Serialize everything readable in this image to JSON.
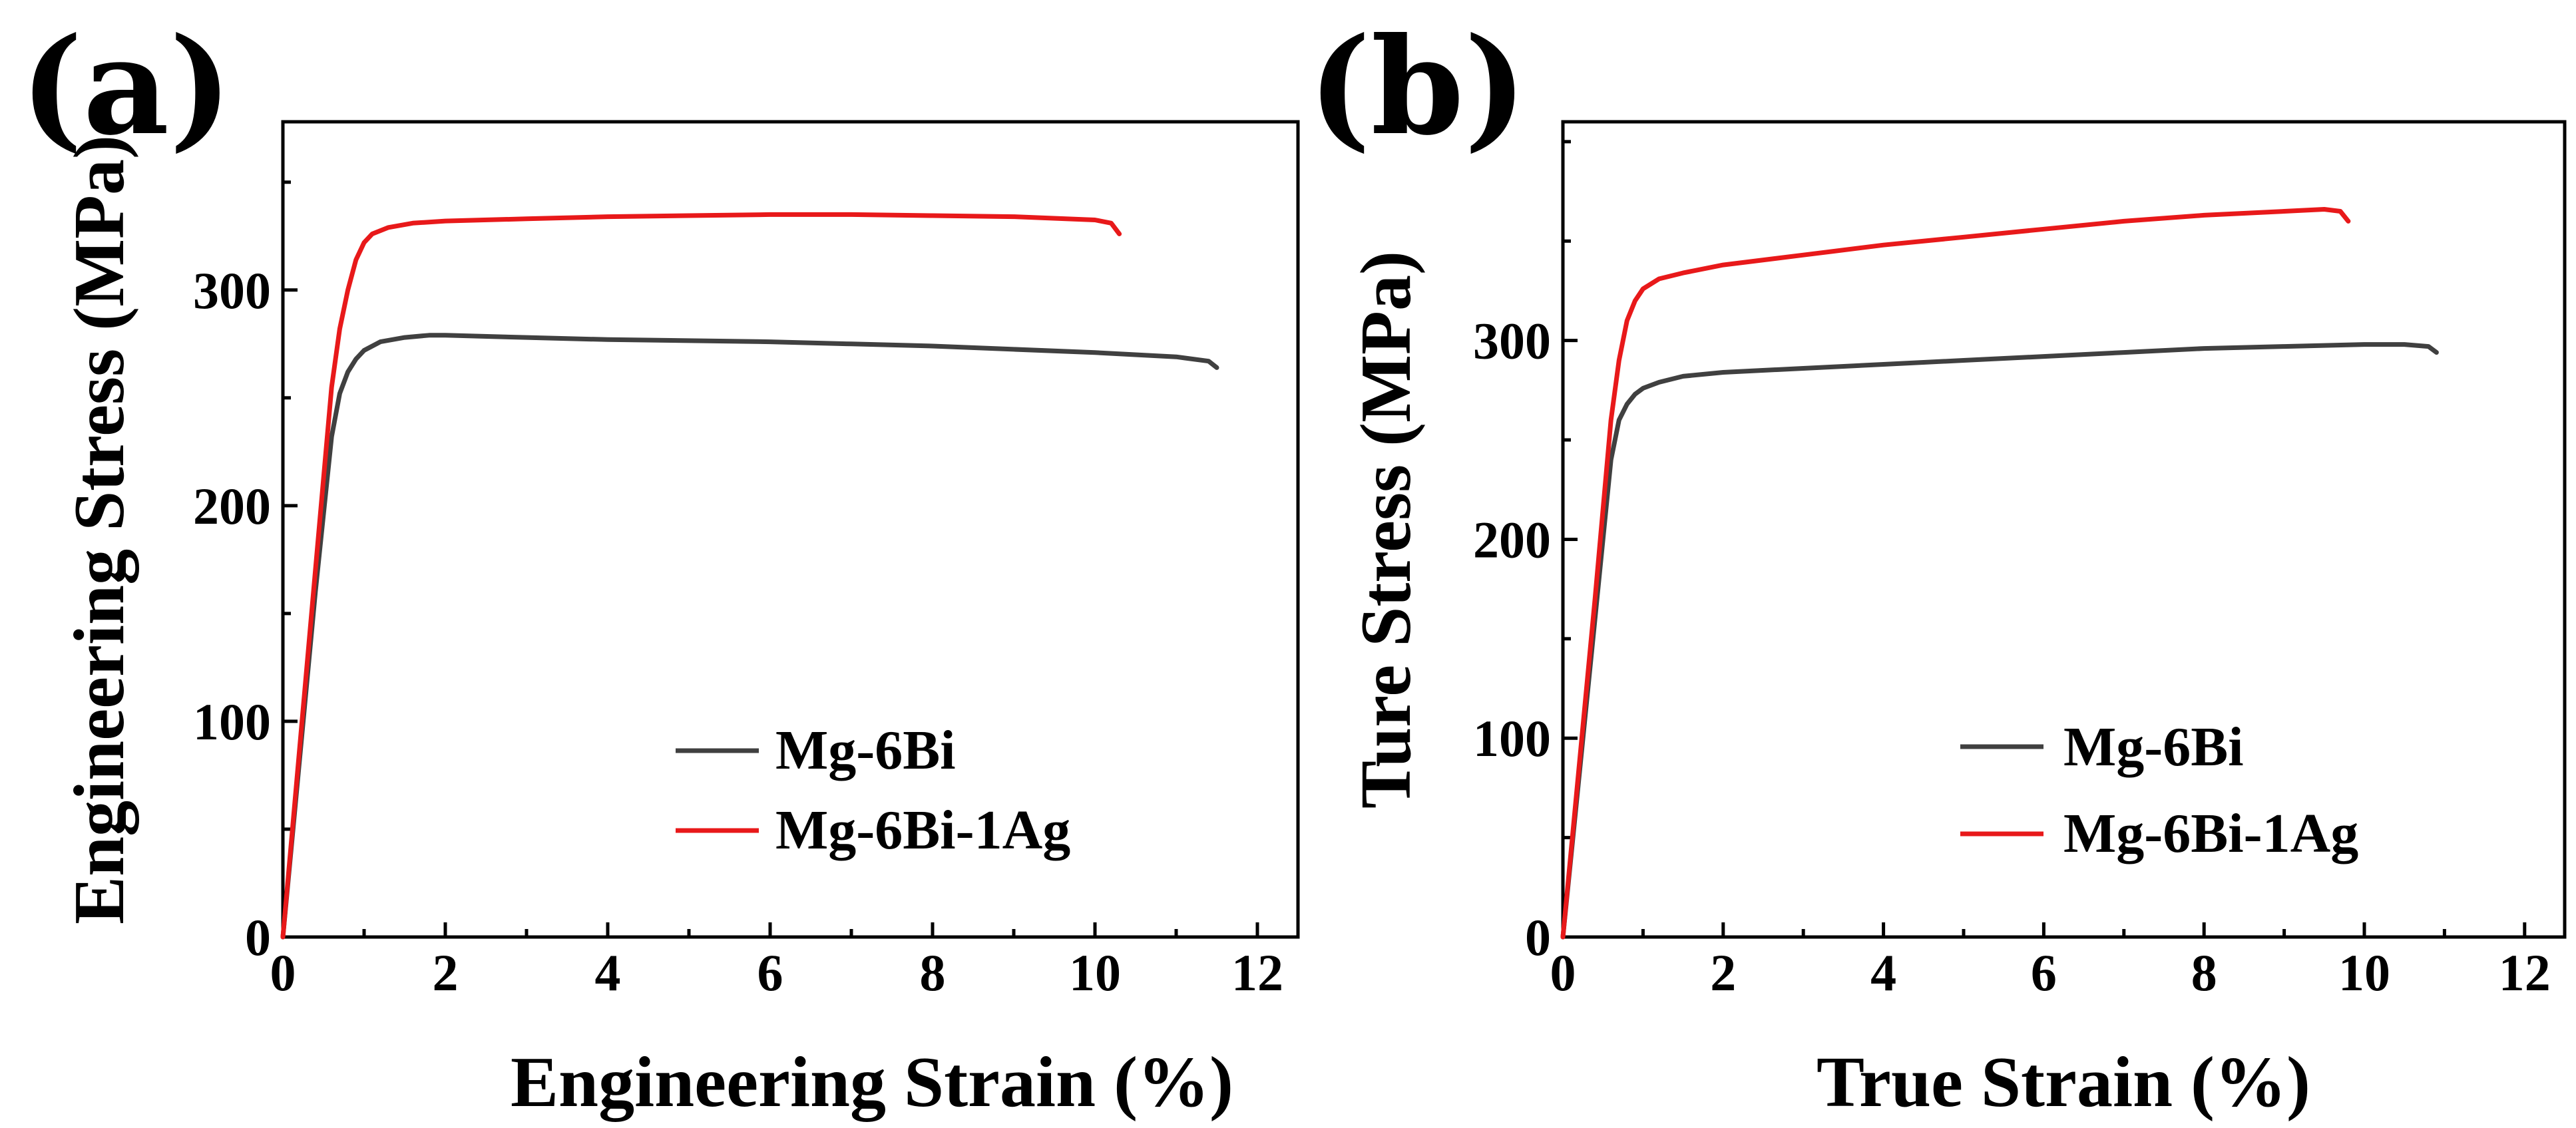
{
  "chart_data": [
    {
      "type": "line",
      "panel_label": "(a)",
      "xlabel": "Engineering Strain (%)",
      "ylabel": "Engineering Stress (MPa)",
      "xlim": [
        0,
        12.5
      ],
      "ylim": [
        0,
        378
      ],
      "xticks": [
        0,
        2,
        4,
        6,
        8,
        10,
        12
      ],
      "yticks": [
        0,
        100,
        200,
        300
      ],
      "legend_position": "lower-right",
      "series": [
        {
          "name": "Mg-6Bi",
          "color": "#404040",
          "x": [
            0,
            0.2,
            0.4,
            0.6,
            0.7,
            0.8,
            0.9,
            1.0,
            1.2,
            1.5,
            1.8,
            2.0,
            3.0,
            4.0,
            5.0,
            6.0,
            7.0,
            8.0,
            9.0,
            10.0,
            11.0,
            11.4,
            11.5
          ],
          "y": [
            0,
            80,
            160,
            232,
            252,
            262,
            268,
            272,
            276,
            278,
            279,
            279,
            278,
            277,
            276.5,
            276,
            275,
            274,
            272.5,
            271,
            269,
            267,
            264
          ]
        },
        {
          "name": "Mg-6Bi-1Ag",
          "color": "#e8191a",
          "x": [
            0,
            0.2,
            0.4,
            0.6,
            0.7,
            0.8,
            0.9,
            1.0,
            1.1,
            1.3,
            1.6,
            2.0,
            3.0,
            4.0,
            5.0,
            6.0,
            7.0,
            8.0,
            9.0,
            10.0,
            10.2,
            10.3
          ],
          "y": [
            0,
            85,
            170,
            255,
            282,
            300,
            314,
            322,
            326,
            329,
            331,
            332,
            333,
            334,
            334.5,
            335,
            335,
            334.5,
            334,
            332.5,
            331,
            326
          ]
        }
      ]
    },
    {
      "type": "line",
      "panel_label": "(b)",
      "xlabel": "True Strain (%)",
      "ylabel": "Ture Stress (MPa)",
      "xlim": [
        0,
        12.5
      ],
      "ylim": [
        0,
        410
      ],
      "xticks": [
        0,
        2,
        4,
        6,
        8,
        10,
        12
      ],
      "yticks": [
        0,
        100,
        200,
        300
      ],
      "legend_position": "lower-right",
      "series": [
        {
          "name": "Mg-6Bi",
          "color": "#404040",
          "x": [
            0,
            0.2,
            0.4,
            0.6,
            0.7,
            0.8,
            0.9,
            1.0,
            1.2,
            1.5,
            2.0,
            3.0,
            4.0,
            5.0,
            6.0,
            7.0,
            8.0,
            9.0,
            10.0,
            10.5,
            10.8,
            10.9
          ],
          "y": [
            0,
            80,
            160,
            240,
            260,
            268,
            273,
            276,
            279,
            282,
            284,
            286,
            288,
            290,
            292,
            294,
            296,
            297,
            298,
            298,
            297,
            294
          ]
        },
        {
          "name": "Mg-6Bi-1Ag",
          "color": "#e8191a",
          "x": [
            0,
            0.2,
            0.4,
            0.6,
            0.7,
            0.8,
            0.9,
            1.0,
            1.2,
            1.5,
            2.0,
            3.0,
            4.0,
            5.0,
            6.0,
            7.0,
            8.0,
            9.0,
            9.5,
            9.7,
            9.8
          ],
          "y": [
            0,
            85,
            170,
            260,
            290,
            310,
            320,
            326,
            331,
            334,
            338,
            343,
            348,
            352,
            356,
            360,
            363,
            365,
            366,
            365,
            360
          ]
        }
      ]
    }
  ]
}
